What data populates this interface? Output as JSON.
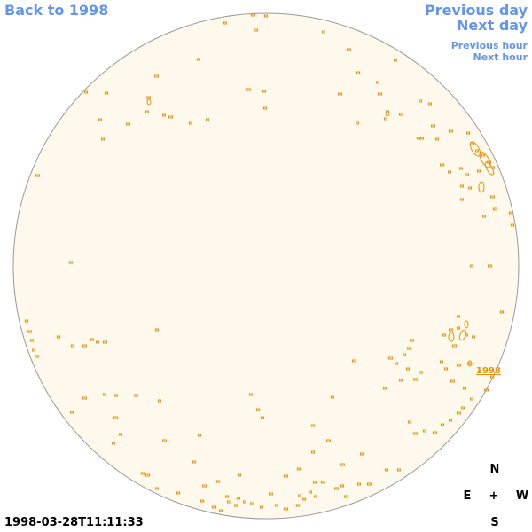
{
  "nav": {
    "back_label": "Back to 1998",
    "prev_day_label": "Previous day",
    "next_day_label": "Next day",
    "prev_hour_label": "Previous hour",
    "next_hour_label": "Next hour"
  },
  "compass": {
    "n": "N",
    "e": "E",
    "center": "+",
    "w": "W",
    "s": "S"
  },
  "timestamp": "1998-03-28T11:11:33",
  "region_label": "1998",
  "colors": {
    "link": "#6495ed",
    "disk_fill": "#fef9ec",
    "disk_stroke": "#9a9a9a",
    "feature": "#e8930c"
  }
}
